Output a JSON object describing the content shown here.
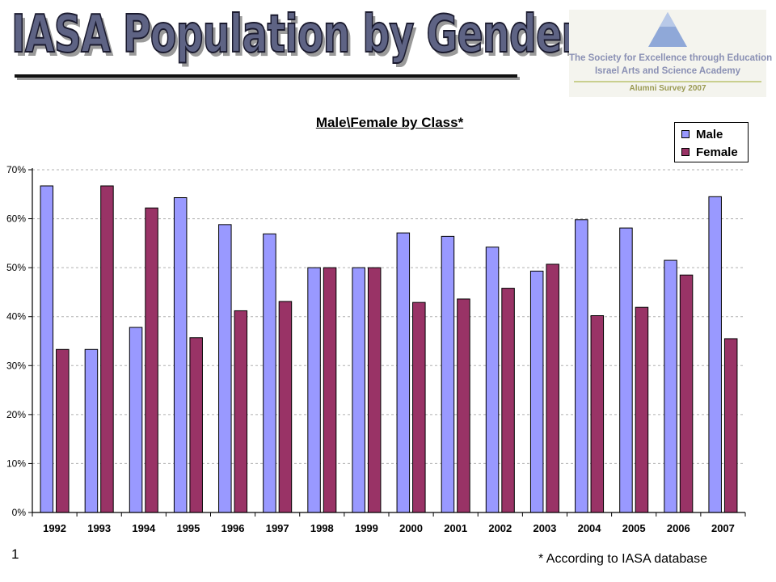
{
  "slide": {
    "title": "IASA Population by Gender",
    "page_number": "1",
    "footnote": "* According to IASA database"
  },
  "logo": {
    "org_name": "The Society for Excellence through Education",
    "academy": "Israel Arts and Science Academy",
    "survey": "Alumni Survey 2007",
    "color": "#8fa8d8"
  },
  "chart_data": {
    "type": "bar",
    "title": "Male\\Female by Class*",
    "xlabel": "",
    "ylabel": "",
    "categories": [
      "1992",
      "1993",
      "1994",
      "1995",
      "1996",
      "1997",
      "1998",
      "1999",
      "2000",
      "2001",
      "2002",
      "2003",
      "2004",
      "2005",
      "2006",
      "2007"
    ],
    "series": [
      {
        "name": "Male",
        "color": "#9999ff",
        "values": [
          0.667,
          0.333,
          0.378,
          0.643,
          0.588,
          0.569,
          0.5,
          0.5,
          0.571,
          0.564,
          0.542,
          0.493,
          0.598,
          0.581,
          0.515,
          0.645
        ]
      },
      {
        "name": "Female",
        "color": "#993366",
        "values": [
          0.333,
          0.667,
          0.622,
          0.357,
          0.412,
          0.431,
          0.5,
          0.5,
          0.429,
          0.436,
          0.458,
          0.507,
          0.402,
          0.419,
          0.485,
          0.355
        ]
      }
    ],
    "ylim": [
      0,
      0.7
    ],
    "y_ticks": [
      "0%",
      "10%",
      "20%",
      "30%",
      "40%",
      "50%",
      "60%",
      "70%"
    ],
    "grid": true,
    "legend_position": "top-right"
  }
}
